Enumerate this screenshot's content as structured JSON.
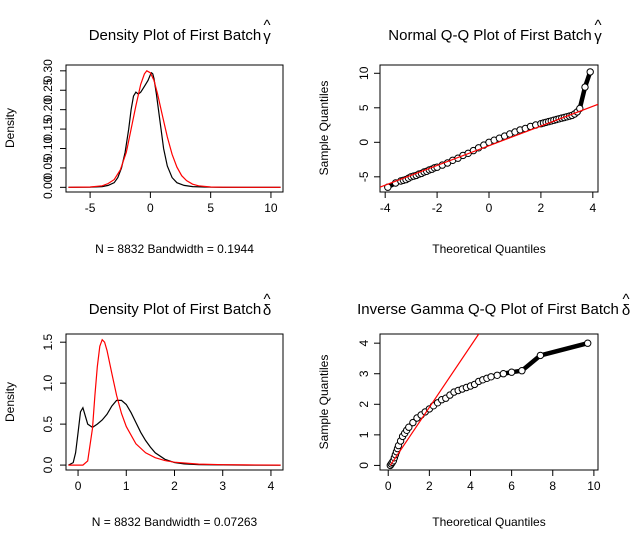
{
  "chart_data": [
    {
      "type": "line",
      "title": "Density Plot of First Batch",
      "title_symbol": "γ",
      "title_accent": "^",
      "xlabel": "N = 8832   Bandwidth = 0.1944",
      "ylabel": "Density",
      "xlim": [
        -7,
        11
      ],
      "ylim": [
        -0.012,
        0.315
      ],
      "xticks": [
        -5,
        0,
        5,
        10
      ],
      "xtick_labels": [
        "-5",
        "0",
        "5",
        "10"
      ],
      "yticks": [
        0.0,
        0.05,
        0.1,
        0.15,
        0.2,
        0.25,
        0.3
      ],
      "ytick_labels": [
        "0.00",
        "0.05",
        "0.10",
        "0.15",
        "0.20",
        "0.25",
        "0.30"
      ],
      "series": [
        {
          "color": "#000000",
          "x": [
            -6.8,
            -5,
            -4,
            -3.5,
            -3,
            -2.7,
            -2.4,
            -2.1,
            -1.8,
            -1.6,
            -1.4,
            -1.2,
            -1.0,
            -0.8,
            -0.6,
            -0.4,
            -0.2,
            0.0,
            0.1,
            0.2,
            0.3,
            0.5,
            0.8,
            1.1,
            1.4,
            1.8,
            2.2,
            2.8,
            3.5,
            4.5,
            6,
            8,
            10.8
          ],
          "y": [
            0.0,
            0.0005,
            0.002,
            0.005,
            0.012,
            0.025,
            0.05,
            0.09,
            0.15,
            0.2,
            0.235,
            0.245,
            0.24,
            0.245,
            0.255,
            0.265,
            0.275,
            0.29,
            0.295,
            0.292,
            0.28,
            0.24,
            0.17,
            0.1,
            0.055,
            0.025,
            0.012,
            0.005,
            0.002,
            0.0008,
            0.0002,
            0.0,
            0.0
          ]
        },
        {
          "color": "#ff0000",
          "x": [
            -6.8,
            -5,
            -4,
            -3.5,
            -3,
            -2.5,
            -2,
            -1.6,
            -1.2,
            -0.8,
            -0.5,
            -0.3,
            0.0,
            0.3,
            0.6,
            1.0,
            1.4,
            1.8,
            2.2,
            2.6,
            3,
            3.5,
            4,
            5,
            6,
            8,
            10.8
          ],
          "y": [
            0.0,
            0.001,
            0.004,
            0.01,
            0.02,
            0.045,
            0.09,
            0.15,
            0.21,
            0.265,
            0.292,
            0.3,
            0.295,
            0.275,
            0.24,
            0.185,
            0.13,
            0.085,
            0.052,
            0.03,
            0.017,
            0.008,
            0.004,
            0.001,
            0.0003,
            0.0,
            0.0
          ]
        }
      ]
    },
    {
      "type": "scatter",
      "title": "Normal Q-Q Plot of First Batch",
      "title_symbol": "γ",
      "title_accent": "^",
      "xlabel": "Theoretical Quantiles",
      "ylabel": "Sample Quantiles",
      "xlim": [
        -4.2,
        4.2
      ],
      "ylim": [
        -7.2,
        11.2
      ],
      "xticks": [
        -4,
        -2,
        0,
        2,
        4
      ],
      "xtick_labels": [
        "-4",
        "-2",
        "0",
        "2",
        "4"
      ],
      "yticks": [
        -5,
        0,
        5,
        10
      ],
      "ytick_labels": [
        "-5",
        "0",
        "5",
        "10"
      ],
      "points": {
        "x": [
          -3.9,
          -3.6,
          -3.4,
          -3.3,
          -3.2,
          -3.1,
          -3.0,
          -2.9,
          -2.8,
          -2.7,
          -2.6,
          -2.5,
          -2.4,
          -2.3,
          -2.2,
          -2.1,
          -2.0,
          -1.8,
          -1.6,
          -1.4,
          -1.2,
          -1.0,
          -0.8,
          -0.6,
          -0.4,
          -0.2,
          0.0,
          0.2,
          0.4,
          0.6,
          0.8,
          1.0,
          1.2,
          1.4,
          1.6,
          1.8,
          2.0,
          2.1,
          2.2,
          2.3,
          2.4,
          2.5,
          2.6,
          2.7,
          2.8,
          2.9,
          3.0,
          3.1,
          3.2,
          3.3,
          3.4,
          3.5,
          3.7,
          3.9
        ],
        "y": [
          -6.5,
          -5.9,
          -5.6,
          -5.5,
          -5.4,
          -5.2,
          -5.0,
          -4.9,
          -4.8,
          -4.6,
          -4.5,
          -4.3,
          -4.2,
          -4.0,
          -3.9,
          -3.7,
          -3.6,
          -3.3,
          -3.0,
          -2.6,
          -2.3,
          -1.9,
          -1.6,
          -1.2,
          -0.8,
          -0.4,
          0.0,
          0.3,
          0.6,
          0.9,
          1.2,
          1.5,
          1.8,
          2.0,
          2.3,
          2.5,
          2.7,
          2.8,
          2.9,
          3.0,
          3.1,
          3.2,
          3.3,
          3.4,
          3.5,
          3.6,
          3.7,
          3.8,
          3.9,
          4.1,
          4.4,
          4.9,
          8.0,
          10.2
        ]
      },
      "ref_line": {
        "color": "#ff0000",
        "x": [
          -4.2,
          4.2
        ],
        "y": [
          -6.5,
          5.5
        ]
      }
    },
    {
      "type": "line",
      "title": "Density Plot of First Batch",
      "title_symbol": "δ",
      "title_accent": "^",
      "xlabel": "N = 8832   Bandwidth = 0.07263",
      "ylabel": "Density",
      "xlim": [
        -0.25,
        4.25
      ],
      "ylim": [
        -0.06,
        1.6
      ],
      "xticks": [
        0,
        1,
        2,
        3,
        4
      ],
      "xtick_labels": [
        "0",
        "1",
        "2",
        "3",
        "4"
      ],
      "yticks": [
        0.0,
        0.5,
        1.0,
        1.5
      ],
      "ytick_labels": [
        "0.0",
        "0.5",
        "1.0",
        "1.5"
      ],
      "series": [
        {
          "color": "#000000",
          "x": [
            -0.2,
            -0.1,
            -0.05,
            0.0,
            0.05,
            0.1,
            0.15,
            0.2,
            0.3,
            0.4,
            0.5,
            0.6,
            0.7,
            0.8,
            0.9,
            1.0,
            1.1,
            1.2,
            1.3,
            1.4,
            1.5,
            1.6,
            1.8,
            2.0,
            2.2,
            2.5,
            3.0,
            3.5,
            4.2
          ],
          "y": [
            0.0,
            0.03,
            0.15,
            0.4,
            0.65,
            0.7,
            0.6,
            0.5,
            0.46,
            0.5,
            0.55,
            0.62,
            0.72,
            0.79,
            0.79,
            0.74,
            0.64,
            0.52,
            0.4,
            0.3,
            0.22,
            0.15,
            0.07,
            0.03,
            0.015,
            0.006,
            0.002,
            0.0,
            0.0
          ]
        },
        {
          "color": "#ff0000",
          "x": [
            -0.2,
            0.1,
            0.2,
            0.3,
            0.35,
            0.4,
            0.45,
            0.5,
            0.55,
            0.6,
            0.7,
            0.8,
            0.9,
            1.0,
            1.2,
            1.4,
            1.6,
            1.8,
            2.0,
            2.5,
            3.0,
            3.5,
            4.2
          ],
          "y": [
            0.0,
            0.0,
            0.05,
            0.45,
            0.85,
            1.2,
            1.45,
            1.53,
            1.5,
            1.4,
            1.12,
            0.85,
            0.63,
            0.47,
            0.26,
            0.15,
            0.09,
            0.055,
            0.035,
            0.012,
            0.005,
            0.002,
            0.0
          ]
        }
      ]
    },
    {
      "type": "scatter",
      "title": "Inverse Gamma Q-Q Plot of First Batch",
      "title_symbol": "δ",
      "title_accent": "^",
      "xlabel": "Theoretical Quantiles",
      "ylabel": "Sample Quantiles",
      "xlim": [
        -0.4,
        10.2
      ],
      "ylim": [
        -0.15,
        4.3
      ],
      "xticks": [
        0,
        2,
        4,
        6,
        8,
        10
      ],
      "xtick_labels": [
        "0",
        "2",
        "4",
        "6",
        "8",
        "10"
      ],
      "yticks": [
        0,
        1,
        2,
        3,
        4
      ],
      "ytick_labels": [
        "0",
        "1",
        "2",
        "3",
        "4"
      ],
      "points": {
        "x": [
          0.1,
          0.15,
          0.2,
          0.25,
          0.3,
          0.35,
          0.4,
          0.45,
          0.5,
          0.6,
          0.7,
          0.8,
          0.9,
          1.0,
          1.2,
          1.4,
          1.6,
          1.8,
          2.0,
          2.2,
          2.4,
          2.6,
          2.8,
          3.0,
          3.2,
          3.4,
          3.6,
          3.8,
          4.0,
          4.2,
          4.4,
          4.6,
          4.8,
          5.0,
          5.3,
          5.6,
          6.0,
          6.5,
          7.4,
          9.7
        ],
        "y": [
          0.0,
          0.05,
          0.1,
          0.15,
          0.25,
          0.35,
          0.45,
          0.55,
          0.65,
          0.8,
          0.95,
          1.05,
          1.15,
          1.25,
          1.4,
          1.55,
          1.65,
          1.75,
          1.85,
          1.95,
          2.05,
          2.15,
          2.2,
          2.3,
          2.4,
          2.45,
          2.5,
          2.55,
          2.6,
          2.65,
          2.75,
          2.8,
          2.85,
          2.9,
          2.95,
          3.0,
          3.05,
          3.1,
          3.6,
          4.0
        ]
      },
      "ref_line": {
        "color": "#ff0000",
        "x": [
          0.1,
          4.4
        ],
        "y": [
          0.0,
          4.3
        ]
      }
    }
  ]
}
